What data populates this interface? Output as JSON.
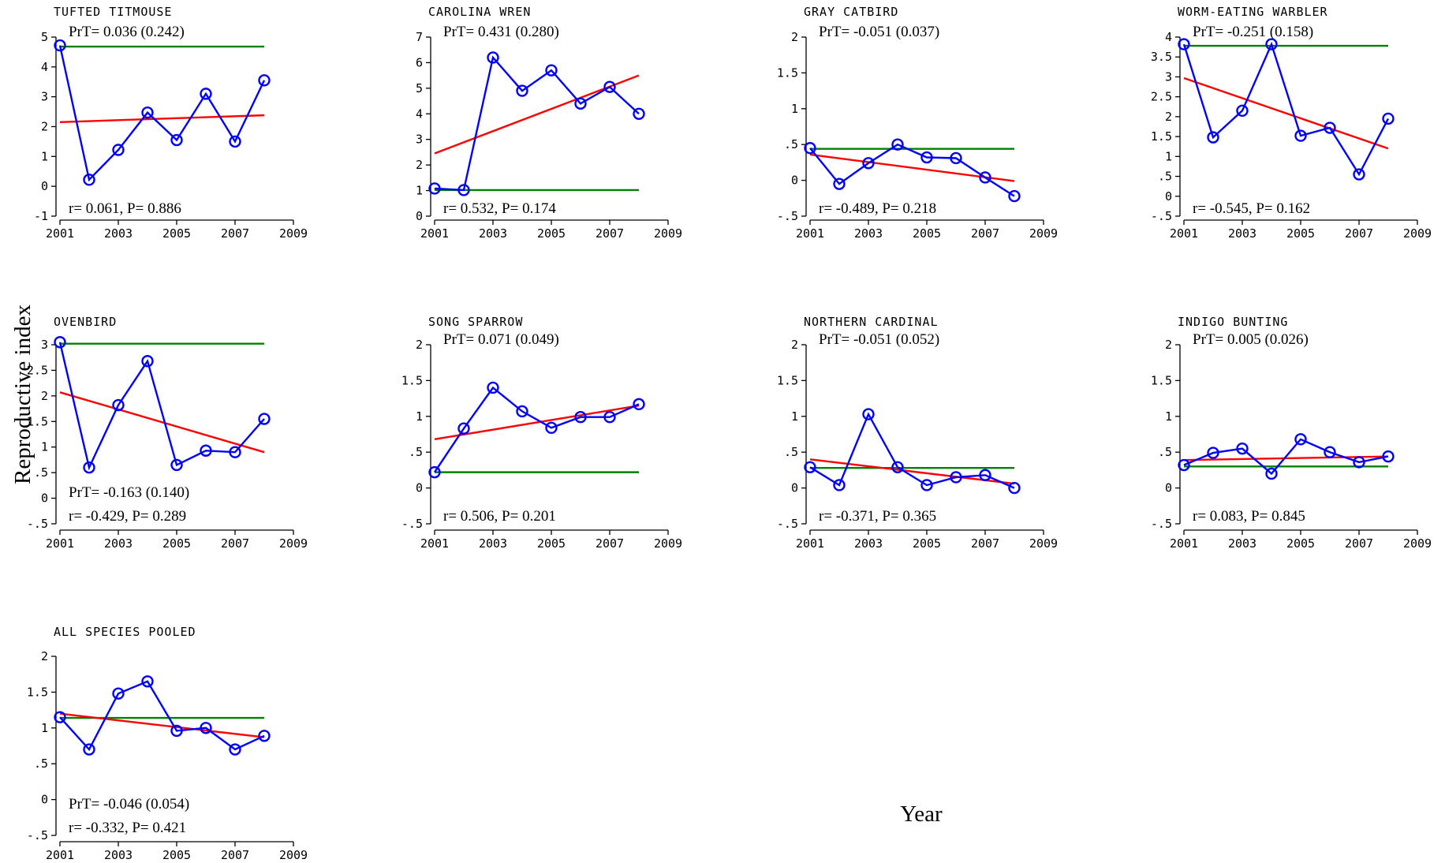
{
  "ylabel": "Reproductive index",
  "xlabel": "Year",
  "colors": {
    "observed": "#0000ff",
    "trend": "#ff0000",
    "baseline": "#008000"
  },
  "chart_data": [
    {
      "type": "line",
      "title": "TUFTED TITMOUSE",
      "x": [
        2001,
        2002,
        2003,
        2004,
        2005,
        2006,
        2007,
        2008
      ],
      "values": [
        4.72,
        0.22,
        1.22,
        2.47,
        1.55,
        3.1,
        1.5,
        3.55
      ],
      "trend": [
        2.15,
        2.38
      ],
      "baseline": 4.68,
      "xlim": [
        2001,
        2009
      ],
      "xticks": [
        2001,
        2003,
        2005,
        2007,
        2009
      ],
      "xtick_labels": [
        "2001",
        "2003",
        "2005",
        "2007",
        "2009"
      ],
      "ylim": [
        -1,
        5
      ],
      "yticks": [
        -1,
        0,
        1,
        2,
        3,
        4,
        5
      ],
      "ytick_labels": [
        "-1",
        "0",
        "1",
        "2",
        "3",
        "4",
        "5"
      ],
      "prt": "PrT= 0.036 (0.242)",
      "rp": "r= 0.061, P= 0.886"
    },
    {
      "type": "line",
      "title": "CAROLINA WREN",
      "x": [
        2001,
        2002,
        2003,
        2004,
        2005,
        2006,
        2007,
        2008
      ],
      "values": [
        1.08,
        1.02,
        6.2,
        4.9,
        5.7,
        4.4,
        5.05,
        4.0
      ],
      "trend": [
        2.45,
        5.5
      ],
      "baseline": 1.02,
      "xlim": [
        2001,
        2009
      ],
      "xticks": [
        2001,
        2003,
        2005,
        2007,
        2009
      ],
      "xtick_labels": [
        "2001",
        "2003",
        "2005",
        "2007",
        "2009"
      ],
      "ylim": [
        0,
        7
      ],
      "yticks": [
        0,
        1,
        2,
        3,
        4,
        5,
        6,
        7
      ],
      "ytick_labels": [
        "0",
        "1",
        "2",
        "3",
        "4",
        "5",
        "6",
        "7"
      ],
      "prt": "PrT= 0.431 (0.280)",
      "rp": "r= 0.532, P= 0.174"
    },
    {
      "type": "line",
      "title": "GRAY CATBIRD",
      "x": [
        2001,
        2002,
        2003,
        2004,
        2005,
        2006,
        2007,
        2008
      ],
      "values": [
        0.45,
        -0.05,
        0.24,
        0.5,
        0.32,
        0.31,
        0.04,
        -0.22
      ],
      "trend": [
        0.36,
        -0.01
      ],
      "baseline": 0.44,
      "xlim": [
        2001,
        2009
      ],
      "xticks": [
        2001,
        2003,
        2005,
        2007,
        2009
      ],
      "xtick_labels": [
        "2001",
        "2003",
        "2005",
        "2007",
        "2009"
      ],
      "ylim": [
        -0.5,
        2
      ],
      "yticks": [
        -0.5,
        0,
        0.5,
        1,
        1.5,
        2
      ],
      "ytick_labels": [
        "-.5",
        "0",
        ".5",
        "1",
        "1.5",
        "2"
      ],
      "prt": "PrT= -0.051 (0.037)",
      "rp": "r= -0.489, P= 0.218"
    },
    {
      "type": "line",
      "title": "WORM-EATING WARBLER",
      "x": [
        2001,
        2002,
        2003,
        2004,
        2005,
        2006,
        2007,
        2008
      ],
      "values": [
        3.82,
        1.48,
        2.15,
        3.82,
        1.52,
        1.72,
        0.55,
        1.95
      ],
      "trend": [
        2.97,
        1.2
      ],
      "baseline": 3.78,
      "xlim": [
        2001,
        2009
      ],
      "xticks": [
        2001,
        2003,
        2005,
        2007,
        2009
      ],
      "xtick_labels": [
        "2001",
        "2003",
        "2005",
        "2007",
        "2009"
      ],
      "ylim": [
        -0.5,
        4
      ],
      "yticks": [
        -0.5,
        0,
        0.5,
        1,
        1.5,
        2,
        2.5,
        3,
        3.5,
        4
      ],
      "ytick_labels": [
        "-.5",
        "0",
        ".5",
        "1",
        "1.5",
        "2",
        "2.5",
        "3",
        "3.5",
        "4"
      ],
      "prt": "PrT= -0.251 (0.158)",
      "rp": "r= -0.545, P= 0.162"
    },
    {
      "type": "line",
      "title": "OVENBIRD",
      "x": [
        2001,
        2002,
        2003,
        2004,
        2005,
        2006,
        2007,
        2008
      ],
      "values": [
        3.05,
        0.6,
        1.82,
        2.68,
        0.65,
        0.93,
        0.9,
        1.55
      ],
      "trend": [
        2.07,
        0.9
      ],
      "baseline": 3.02,
      "xlim": [
        2001,
        2009
      ],
      "xticks": [
        2001,
        2003,
        2005,
        2007,
        2009
      ],
      "xtick_labels": [
        "2001",
        "2003",
        "2005",
        "2007",
        "2009"
      ],
      "ylim": [
        -0.5,
        3
      ],
      "yticks": [
        -0.5,
        0,
        0.5,
        1,
        1.5,
        2,
        2.5,
        3
      ],
      "ytick_labels": [
        "-.5",
        "0",
        ".5",
        "1",
        "1.5",
        "2",
        "2.5",
        "3"
      ],
      "prt": "PrT= -0.163 (0.140)",
      "rp": "r= -0.429, P= 0.289"
    },
    {
      "type": "line",
      "title": "SONG SPARROW",
      "x": [
        2001,
        2002,
        2003,
        2004,
        2005,
        2006,
        2007,
        2008
      ],
      "values": [
        0.22,
        0.83,
        1.4,
        1.07,
        0.84,
        0.99,
        0.99,
        1.17
      ],
      "trend": [
        0.68,
        1.15
      ],
      "baseline": 0.22,
      "xlim": [
        2001,
        2009
      ],
      "xticks": [
        2001,
        2003,
        2005,
        2007,
        2009
      ],
      "xtick_labels": [
        "2001",
        "2003",
        "2005",
        "2007",
        "2009"
      ],
      "ylim": [
        -0.5,
        2
      ],
      "yticks": [
        -0.5,
        0,
        0.5,
        1,
        1.5,
        2
      ],
      "ytick_labels": [
        "-.5",
        "0",
        ".5",
        "1",
        "1.5",
        "2"
      ],
      "prt": "PrT= 0.071 (0.049)",
      "rp": "r= 0.506, P= 0.201"
    },
    {
      "type": "line",
      "title": "NORTHERN CARDINAL",
      "x": [
        2001,
        2002,
        2003,
        2004,
        2005,
        2006,
        2007,
        2008
      ],
      "values": [
        0.29,
        0.04,
        1.03,
        0.29,
        0.04,
        0.15,
        0.18,
        0.0
      ],
      "trend": [
        0.4,
        0.06
      ],
      "baseline": 0.28,
      "xlim": [
        2001,
        2009
      ],
      "xticks": [
        2001,
        2003,
        2005,
        2007,
        2009
      ],
      "xtick_labels": [
        "2001",
        "2003",
        "2005",
        "2007",
        "2009"
      ],
      "ylim": [
        -0.5,
        2
      ],
      "yticks": [
        -0.5,
        0,
        0.5,
        1,
        1.5,
        2
      ],
      "ytick_labels": [
        "-.5",
        "0",
        ".5",
        "1",
        "1.5",
        "2"
      ],
      "prt": "PrT= -0.051 (0.052)",
      "rp": "r= -0.371, P= 0.365"
    },
    {
      "type": "line",
      "title": "INDIGO BUNTING",
      "x": [
        2001,
        2002,
        2003,
        2004,
        2005,
        2006,
        2007,
        2008
      ],
      "values": [
        0.32,
        0.49,
        0.55,
        0.2,
        0.68,
        0.5,
        0.36,
        0.44
      ],
      "trend": [
        0.39,
        0.44
      ],
      "baseline": 0.3,
      "xlim": [
        2001,
        2009
      ],
      "xticks": [
        2001,
        2003,
        2005,
        2007,
        2009
      ],
      "xtick_labels": [
        "2001",
        "2003",
        "2005",
        "2007",
        "2009"
      ],
      "ylim": [
        -0.5,
        2
      ],
      "yticks": [
        -0.5,
        0,
        0.5,
        1,
        1.5,
        2
      ],
      "ytick_labels": [
        "-.5",
        "0",
        ".5",
        "1",
        "1.5",
        "2"
      ],
      "prt": "PrT= 0.005 (0.026)",
      "rp": "r= 0.083, P= 0.845"
    },
    {
      "type": "line",
      "title": "ALL SPECIES POOLED",
      "x": [
        2001,
        2002,
        2003,
        2004,
        2005,
        2006,
        2007,
        2008
      ],
      "values": [
        1.15,
        0.7,
        1.48,
        1.65,
        0.96,
        1.0,
        0.7,
        0.89
      ],
      "trend": [
        1.2,
        0.87
      ],
      "baseline": 1.14,
      "xlim": [
        2001,
        2009
      ],
      "xticks": [
        2001,
        2003,
        2005,
        2007,
        2009
      ],
      "xtick_labels": [
        "2001",
        "2003",
        "2005",
        "2007",
        "2009"
      ],
      "ylim": [
        -0.5,
        2
      ],
      "yticks": [
        -0.5,
        0,
        0.5,
        1,
        1.5,
        2
      ],
      "ytick_labels": [
        "-.5",
        "0",
        ".5",
        "1",
        "1.5",
        "2"
      ],
      "prt": "PrT= -0.046 (0.054)",
      "rp": "r= -0.332, P= 0.421"
    }
  ]
}
